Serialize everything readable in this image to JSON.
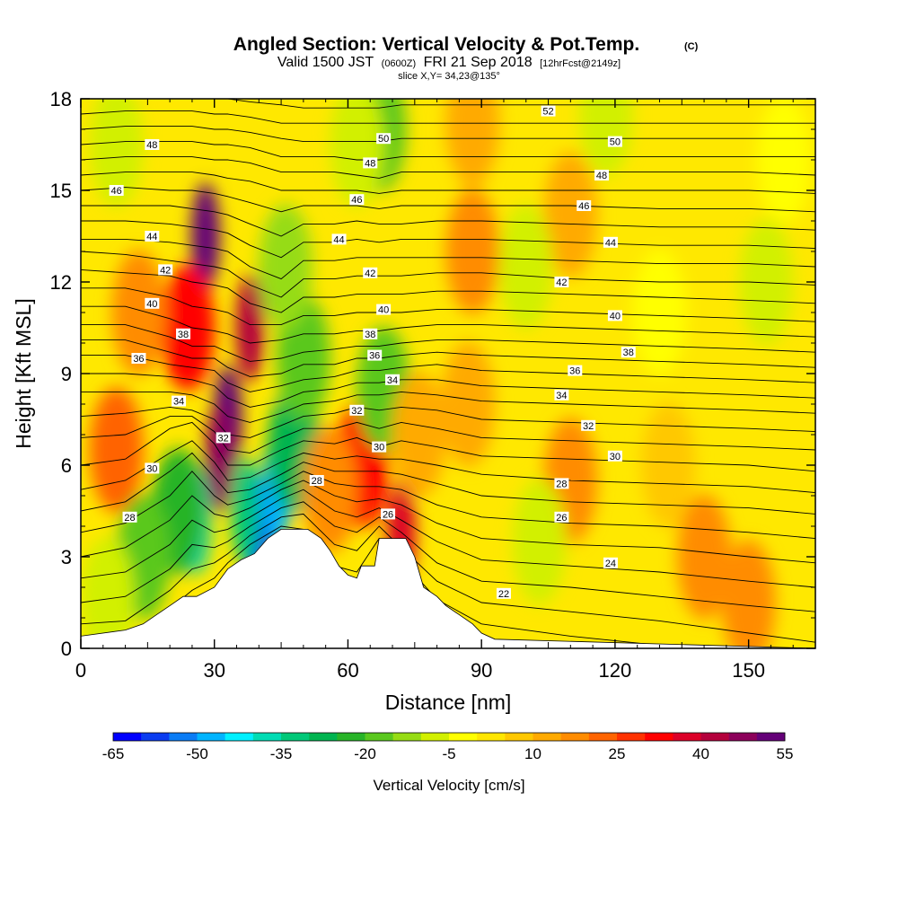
{
  "chart_data": {
    "type": "heatmap",
    "title": "Angled Section: Vertical Velocity & Pot.Temp.",
    "title_unit": "(C)",
    "subtitle_parts": [
      "Valid 1500 JST",
      "(0600Z)",
      "FRI 21 Sep 2018",
      "[12hrFcst@2149z]"
    ],
    "slice_label": "slice X,Y= 34,23@135°",
    "xlabel": "Distance [nm]",
    "ylabel": "Height [Kft MSL]",
    "xlim": [
      0,
      165
    ],
    "ylim": [
      0,
      18
    ],
    "x_ticks": [
      0,
      30,
      60,
      90,
      120,
      150
    ],
    "y_ticks": [
      0,
      3,
      6,
      9,
      12,
      15,
      18
    ],
    "colorbar": {
      "label": "Vertical Velocity [cm/s]",
      "tick_labels": [
        "-65",
        "-50",
        "-35",
        "-20",
        "-5",
        "10",
        "25",
        "40",
        "55"
      ],
      "colors": [
        "#0000ff",
        "#0a3cf0",
        "#0a7cf5",
        "#00b4ff",
        "#00f0ff",
        "#00dcb4",
        "#00c878",
        "#00b450",
        "#28b428",
        "#5ac81e",
        "#96dc14",
        "#d2f000",
        "#ffff00",
        "#ffe600",
        "#ffc800",
        "#ffaa00",
        "#ff8c00",
        "#ff6400",
        "#ff3200",
        "#ff0000",
        "#dc0028",
        "#b4003c",
        "#8c005a",
        "#640078"
      ]
    },
    "velocity_features": [
      {
        "x": 28,
        "y": 13.5,
        "value": 55
      },
      {
        "x": 24,
        "y": 10.5,
        "value": 30
      },
      {
        "x": 38,
        "y": 10.5,
        "value": 40
      },
      {
        "x": 33,
        "y": 7.5,
        "value": 55
      },
      {
        "x": 31,
        "y": 6.2,
        "value": 45
      },
      {
        "x": 13,
        "y": 11,
        "value": 15
      },
      {
        "x": 8,
        "y": 6.5,
        "value": 20
      },
      {
        "x": 40,
        "y": 3.8,
        "value": -60
      },
      {
        "x": 44,
        "y": 5.2,
        "value": -50
      },
      {
        "x": 37,
        "y": 4.5,
        "value": -35
      },
      {
        "x": 48,
        "y": 6.5,
        "value": -28
      },
      {
        "x": 50,
        "y": 9.5,
        "value": -18
      },
      {
        "x": 46,
        "y": 12.5,
        "value": -12
      },
      {
        "x": 26,
        "y": 4.2,
        "value": -38
      },
      {
        "x": 22,
        "y": 4.5,
        "value": -22
      },
      {
        "x": 14,
        "y": 3,
        "value": -20
      },
      {
        "x": 6,
        "y": 1.6,
        "value": -10
      },
      {
        "x": 63,
        "y": 6,
        "value": 30
      },
      {
        "x": 72,
        "y": 3.8,
        "value": 35
      },
      {
        "x": 56,
        "y": 5.2,
        "value": 15
      },
      {
        "x": 68,
        "y": 8.5,
        "value": -20
      },
      {
        "x": 67,
        "y": 17,
        "value": -18
      },
      {
        "x": 62,
        "y": 16.5,
        "value": -10
      },
      {
        "x": 88,
        "y": 13,
        "value": 15
      },
      {
        "x": 87,
        "y": 8,
        "value": 14
      },
      {
        "x": 110,
        "y": 14.2,
        "value": 12
      },
      {
        "x": 110,
        "y": 5.5,
        "value": 15
      },
      {
        "x": 100,
        "y": 12.5,
        "value": -6
      },
      {
        "x": 103,
        "y": 3.5,
        "value": -6
      },
      {
        "x": 130,
        "y": 11,
        "value": -5
      },
      {
        "x": 132,
        "y": 6,
        "value": 6
      },
      {
        "x": 140,
        "y": 3,
        "value": 15
      },
      {
        "x": 150,
        "y": 1.5,
        "value": 18
      },
      {
        "x": 154,
        "y": 12,
        "value": -8
      },
      {
        "x": 158,
        "y": 16,
        "value": -4
      },
      {
        "x": 8,
        "y": 16.5,
        "value": -6
      },
      {
        "x": 118,
        "y": 17.5,
        "value": -6
      },
      {
        "x": 88,
        "y": 17.2,
        "value": 10
      },
      {
        "x": 76,
        "y": 7,
        "value": 12
      }
    ],
    "theta_levels": [
      22,
      23,
      24,
      25,
      26,
      27,
      28,
      29,
      30,
      31,
      32,
      33,
      34,
      35,
      36,
      37,
      38,
      39,
      40,
      41,
      42,
      43,
      44,
      45,
      46,
      47,
      48,
      49,
      50,
      51,
      52
    ],
    "theta_heights": [
      {
        "x": 0,
        "h": [
          0.2,
          0.8,
          1.5,
          2.3,
          3.0,
          3.8,
          4.5,
          5.2,
          6.0,
          6.9,
          7.6,
          8.4,
          9.0,
          9.6,
          10.1,
          10.6,
          11.2,
          11.8,
          12.4,
          13.0,
          13.4,
          14.0,
          14.5,
          15.0,
          15.5,
          16.0,
          16.5,
          17.0,
          17.5,
          18.0,
          18.5
        ]
      },
      {
        "x": 10,
        "h": [
          0.2,
          0.9,
          1.7,
          2.5,
          3.3,
          4.1,
          4.8,
          5.5,
          6.2,
          7.0,
          7.7,
          8.4,
          9.0,
          9.6,
          10.1,
          10.6,
          11.2,
          11.8,
          12.3,
          12.9,
          13.4,
          14.0,
          14.5,
          15.1,
          15.6,
          16.1,
          16.6,
          17.1,
          17.6,
          18.1,
          18.6
        ]
      },
      {
        "x": 20,
        "h": [
          1.3,
          1.9,
          2.6,
          3.4,
          4.2,
          5.0,
          5.8,
          6.4,
          7.2,
          7.6,
          7.9,
          8.4,
          8.9,
          9.3,
          9.7,
          10.2,
          10.8,
          11.5,
          12.2,
          12.7,
          13.3,
          13.9,
          14.5,
          15.0,
          15.6,
          16.1,
          16.6,
          17.1,
          17.6,
          18.1,
          18.6
        ]
      },
      {
        "x": 25,
        "h": [
          1.9,
          2.6,
          3.4,
          4.2,
          5.0,
          5.8,
          6.4,
          6.8,
          7.4,
          7.6,
          7.8,
          8.3,
          8.8,
          9.2,
          9.5,
          9.9,
          10.5,
          11.2,
          12.0,
          12.6,
          13.2,
          13.8,
          14.4,
          15.0,
          15.6,
          16.1,
          16.6,
          17.1,
          17.6,
          18.1,
          18.6
        ]
      },
      {
        "x": 30,
        "h": [
          2.3,
          2.8,
          3.3,
          3.8,
          4.4,
          5.0,
          5.6,
          6.1,
          6.7,
          7.1,
          7.5,
          8.0,
          8.6,
          9.1,
          9.5,
          9.9,
          10.4,
          11.1,
          11.9,
          12.5,
          13.1,
          13.7,
          14.3,
          14.9,
          15.5,
          16.0,
          16.5,
          17.0,
          17.5,
          18.0,
          18.5
        ]
      },
      {
        "x": 33,
        "h": [
          2.8,
          3.1,
          3.5,
          3.9,
          4.3,
          4.7,
          5.1,
          5.5,
          6.0,
          6.5,
          7.0,
          7.6,
          8.2,
          8.7,
          9.2,
          9.7,
          10.3,
          11.0,
          11.8,
          12.4,
          13.0,
          13.6,
          14.2,
          14.8,
          15.4,
          16.0,
          16.5,
          17.0,
          17.5,
          18.0,
          18.5
        ]
      },
      {
        "x": 38,
        "h": [
          3.4,
          3.7,
          4.0,
          4.3,
          4.6,
          4.9,
          5.2,
          5.6,
          6.0,
          6.4,
          6.9,
          7.4,
          7.9,
          8.4,
          8.9,
          9.4,
          10.0,
          10.6,
          11.3,
          11.9,
          12.5,
          13.2,
          13.9,
          14.6,
          15.3,
          15.9,
          16.4,
          16.9,
          17.4,
          17.9,
          18.4
        ]
      },
      {
        "x": 45,
        "h": [
          4.0,
          4.3,
          4.6,
          4.9,
          5.2,
          5.4,
          5.7,
          6.1,
          6.5,
          6.9,
          7.3,
          7.7,
          8.1,
          8.6,
          9.0,
          9.5,
          10.1,
          10.6,
          11.0,
          11.5,
          12.1,
          12.8,
          13.5,
          14.3,
          15.0,
          15.6,
          16.1,
          16.7,
          17.2,
          17.8,
          18.3
        ]
      },
      {
        "x": 50,
        "h": [
          3.9,
          4.4,
          4.8,
          5.2,
          5.5,
          5.8,
          6.1,
          6.4,
          6.8,
          7.2,
          7.6,
          8.0,
          8.4,
          8.8,
          9.3,
          9.7,
          10.3,
          10.9,
          11.5,
          12.1,
          12.7,
          13.3,
          13.9,
          14.5,
          15.0,
          15.6,
          16.1,
          16.6,
          17.2,
          17.7,
          18.2
        ]
      },
      {
        "x": 57,
        "h": [
          2.7,
          3.4,
          4.0,
          4.5,
          5.0,
          5.4,
          5.8,
          6.2,
          6.7,
          7.2,
          7.7,
          8.1,
          8.5,
          8.9,
          9.3,
          9.8,
          10.3,
          10.9,
          11.5,
          12.1,
          12.7,
          13.3,
          13.9,
          14.5,
          15.0,
          15.6,
          16.1,
          16.6,
          17.2,
          17.7,
          18.2
        ]
      },
      {
        "x": 62,
        "h": [
          2.5,
          3.2,
          3.8,
          4.3,
          4.8,
          5.3,
          5.8,
          6.3,
          6.9,
          7.4,
          7.9,
          8.3,
          8.7,
          9.1,
          9.5,
          9.9,
          10.4,
          11.0,
          11.6,
          12.2,
          12.8,
          13.4,
          14.0,
          14.5,
          15.0,
          15.5,
          16.0,
          16.6,
          17.2,
          17.7,
          18.2
        ]
      },
      {
        "x": 67,
        "h": [
          3.6,
          4.0,
          4.3,
          4.6,
          4.9,
          5.3,
          5.8,
          6.2,
          6.6,
          7.2,
          7.8,
          8.3,
          8.7,
          9.1,
          9.5,
          9.9,
          10.4,
          11.0,
          11.6,
          12.2,
          12.8,
          13.3,
          13.9,
          14.4,
          14.9,
          15.4,
          16.0,
          16.6,
          17.2,
          17.7,
          18.2
        ]
      },
      {
        "x": 72,
        "h": [
          2.9,
          3.3,
          3.8,
          4.2,
          4.7,
          5.2,
          5.7,
          6.2,
          6.8,
          7.4,
          7.9,
          8.4,
          8.8,
          9.2,
          9.6,
          10.0,
          10.5,
          11.0,
          11.6,
          12.2,
          12.8,
          13.4,
          13.9,
          14.5,
          15.0,
          15.6,
          16.1,
          16.7,
          17.2,
          17.8,
          18.3
        ]
      },
      {
        "x": 80,
        "h": [
          1.6,
          2.2,
          2.8,
          3.5,
          4.1,
          4.7,
          5.4,
          6.0,
          6.6,
          7.2,
          7.8,
          8.3,
          8.8,
          9.3,
          9.7,
          10.1,
          10.6,
          11.1,
          11.7,
          12.3,
          12.8,
          13.4,
          14.0,
          14.5,
          15.0,
          15.6,
          16.1,
          16.7,
          17.2,
          17.8,
          18.3
        ]
      },
      {
        "x": 90,
        "h": [
          0.8,
          1.5,
          2.2,
          2.9,
          3.6,
          4.3,
          5.0,
          5.7,
          6.3,
          6.9,
          7.5,
          8.1,
          8.6,
          9.1,
          9.6,
          10.1,
          10.6,
          11.1,
          11.7,
          12.3,
          12.8,
          13.4,
          14.0,
          14.5,
          15.0,
          15.6,
          16.1,
          16.7,
          17.2,
          17.8,
          18.3
        ]
      },
      {
        "x": 110,
        "h": [
          0.4,
          1.2,
          2.0,
          2.7,
          3.4,
          4.1,
          4.8,
          5.5,
          6.2,
          6.8,
          7.4,
          8.0,
          8.5,
          9.0,
          9.5,
          10.0,
          10.5,
          11.0,
          11.6,
          12.1,
          12.7,
          13.3,
          13.9,
          14.5,
          15.0,
          15.6,
          16.1,
          16.7,
          17.2,
          17.8,
          18.3
        ]
      },
      {
        "x": 130,
        "h": [
          0.1,
          0.9,
          1.7,
          2.5,
          3.3,
          4.0,
          4.7,
          5.4,
          6.1,
          6.7,
          7.3,
          7.9,
          8.4,
          8.9,
          9.4,
          9.9,
          10.4,
          10.9,
          11.5,
          12.0,
          12.6,
          13.2,
          13.8,
          14.4,
          15.0,
          15.6,
          16.1,
          16.7,
          17.2,
          17.8,
          18.3
        ]
      },
      {
        "x": 150,
        "h": [
          -0.5,
          0.5,
          1.4,
          2.2,
          3.0,
          3.8,
          4.6,
          5.3,
          6.0,
          6.6,
          7.2,
          7.8,
          8.3,
          8.8,
          9.3,
          9.8,
          10.3,
          10.8,
          11.4,
          12.0,
          12.6,
          13.2,
          13.8,
          14.4,
          15.0,
          15.6,
          16.1,
          16.7,
          17.2,
          17.8,
          18.3
        ]
      },
      {
        "x": 165,
        "h": [
          -1.0,
          0.2,
          1.2,
          2.0,
          2.8,
          3.6,
          4.4,
          5.1,
          5.8,
          6.5,
          7.1,
          7.7,
          8.2,
          8.7,
          9.2,
          9.7,
          10.2,
          10.7,
          11.3,
          11.9,
          12.5,
          13.1,
          13.7,
          14.3,
          14.9,
          15.5,
          16.1,
          16.7,
          17.2,
          17.8,
          18.3
        ]
      }
    ],
    "theta_labels": [
      {
        "text": "52",
        "x": 105,
        "y": 17.6
      },
      {
        "text": "50",
        "x": 68,
        "y": 16.7
      },
      {
        "text": "50",
        "x": 120,
        "y": 16.6
      },
      {
        "text": "48",
        "x": 16,
        "y": 16.5
      },
      {
        "text": "48",
        "x": 65,
        "y": 15.9
      },
      {
        "text": "48",
        "x": 117,
        "y": 15.5
      },
      {
        "text": "46",
        "x": 8,
        "y": 15.0
      },
      {
        "text": "46",
        "x": 62,
        "y": 14.7
      },
      {
        "text": "46",
        "x": 113,
        "y": 14.5
      },
      {
        "text": "44",
        "x": 16,
        "y": 13.5
      },
      {
        "text": "44",
        "x": 58,
        "y": 13.4
      },
      {
        "text": "44",
        "x": 119,
        "y": 13.3
      },
      {
        "text": "42",
        "x": 19,
        "y": 12.4
      },
      {
        "text": "42",
        "x": 65,
        "y": 12.3
      },
      {
        "text": "42",
        "x": 108,
        "y": 12.0
      },
      {
        "text": "40",
        "x": 16,
        "y": 11.3
      },
      {
        "text": "40",
        "x": 68,
        "y": 11.1
      },
      {
        "text": "40",
        "x": 120,
        "y": 10.9
      },
      {
        "text": "38",
        "x": 23,
        "y": 10.3
      },
      {
        "text": "38",
        "x": 65,
        "y": 10.3
      },
      {
        "text": "38",
        "x": 123,
        "y": 9.7
      },
      {
        "text": "36",
        "x": 13,
        "y": 9.5
      },
      {
        "text": "36",
        "x": 66,
        "y": 9.6
      },
      {
        "text": "36",
        "x": 111,
        "y": 9.1
      },
      {
        "text": "34",
        "x": 70,
        "y": 8.8
      },
      {
        "text": "34",
        "x": 22,
        "y": 8.1
      },
      {
        "text": "34",
        "x": 108,
        "y": 8.3
      },
      {
        "text": "32",
        "x": 62,
        "y": 7.8
      },
      {
        "text": "32",
        "x": 32,
        "y": 6.9
      },
      {
        "text": "32",
        "x": 114,
        "y": 7.3
      },
      {
        "text": "30",
        "x": 67,
        "y": 6.6
      },
      {
        "text": "30",
        "x": 120,
        "y": 6.3
      },
      {
        "text": "30",
        "x": 16,
        "y": 5.9
      },
      {
        "text": "28",
        "x": 53,
        "y": 5.5
      },
      {
        "text": "28",
        "x": 108,
        "y": 5.4
      },
      {
        "text": "28",
        "x": 11,
        "y": 4.3
      },
      {
        "text": "26",
        "x": 69,
        "y": 4.4
      },
      {
        "text": "26",
        "x": 108,
        "y": 4.3
      },
      {
        "text": "24",
        "x": 119,
        "y": 2.8
      },
      {
        "text": "22",
        "x": 95,
        "y": 1.8
      }
    ],
    "terrain": [
      [
        0,
        0.4
      ],
      [
        10,
        0.6
      ],
      [
        14,
        0.8
      ],
      [
        17,
        1.1
      ],
      [
        20,
        1.4
      ],
      [
        23,
        1.7
      ],
      [
        26,
        1.7
      ],
      [
        30,
        2.0
      ],
      [
        33,
        2.6
      ],
      [
        36,
        2.9
      ],
      [
        39,
        3.1
      ],
      [
        42,
        3.6
      ],
      [
        45,
        3.9
      ],
      [
        51,
        3.9
      ],
      [
        54,
        3.6
      ],
      [
        56,
        3.2
      ],
      [
        58,
        2.7
      ],
      [
        60,
        2.4
      ],
      [
        62,
        2.3
      ],
      [
        63,
        2.7
      ],
      [
        66,
        2.7
      ],
      [
        67,
        3.6
      ],
      [
        73,
        3.6
      ],
      [
        75,
        3.0
      ],
      [
        77,
        2.0
      ],
      [
        80,
        1.7
      ],
      [
        82,
        1.4
      ],
      [
        85,
        1.1
      ],
      [
        88,
        0.8
      ],
      [
        90,
        0.5
      ],
      [
        93,
        0.3
      ],
      [
        165,
        0.0
      ]
    ]
  }
}
